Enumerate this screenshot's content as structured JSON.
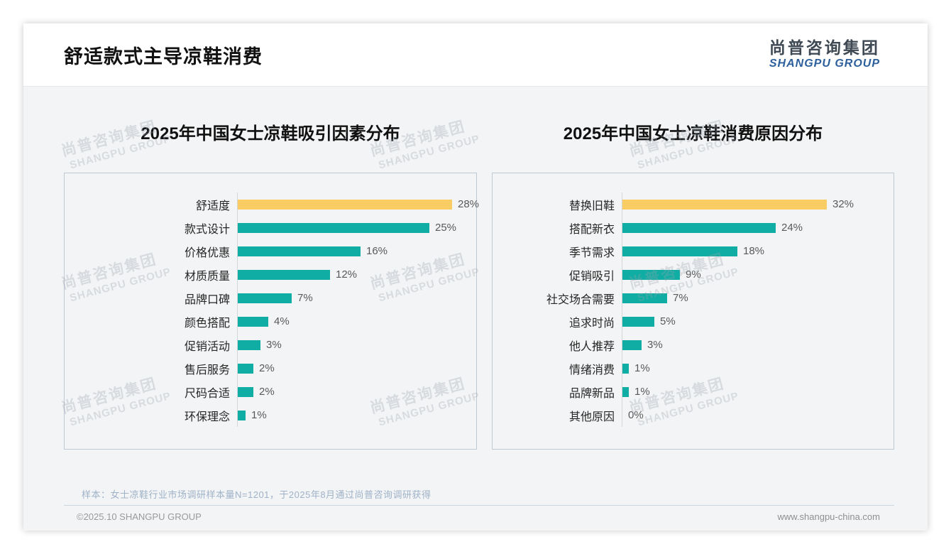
{
  "page": {
    "title": "舒适款式主导凉鞋消费",
    "logo": {
      "cn": "尚普咨询集团",
      "en": "SHANGPU GROUP"
    },
    "watermark": {
      "cn": "尚普咨询集团",
      "en": "SHANGPU GROUP"
    },
    "footnote": "样本：女士凉鞋行业市场调研样本量N=1201，于2025年8月通过尚普咨询调研获得",
    "footer_left": "©2025.10 SHANGPU GROUP",
    "footer_right": "www.shangpu-china.com"
  },
  "colors": {
    "bar_teal": "#0fada3",
    "bar_highlight": "#facc64",
    "value_text": "#595959"
  },
  "chart_data": [
    {
      "type": "bar",
      "orientation": "horizontal",
      "title": "2025年中国女士凉鞋吸引因素分布",
      "categories": [
        "舒适度",
        "款式设计",
        "价格优惠",
        "材质质量",
        "品牌口碑",
        "颜色搭配",
        "促销活动",
        "售后服务",
        "尺码合适",
        "环保理念"
      ],
      "values": [
        28,
        25,
        16,
        12,
        7,
        4,
        3,
        2,
        2,
        1
      ],
      "unit": "%",
      "highlight_index": 0,
      "xlim": [
        0,
        30
      ],
      "grid": false,
      "legend": false
    },
    {
      "type": "bar",
      "orientation": "horizontal",
      "title": "2025年中国女士凉鞋消费原因分布",
      "categories": [
        "替换旧鞋",
        "搭配新衣",
        "季节需求",
        "促销吸引",
        "社交场合需要",
        "追求时尚",
        "他人推荐",
        "情绪消费",
        "品牌新品",
        "其他原因"
      ],
      "values": [
        32,
        24,
        18,
        9,
        7,
        5,
        3,
        1,
        1,
        0
      ],
      "unit": "%",
      "highlight_index": 0,
      "xlim": [
        0,
        36
      ],
      "grid": false,
      "legend": false
    }
  ]
}
